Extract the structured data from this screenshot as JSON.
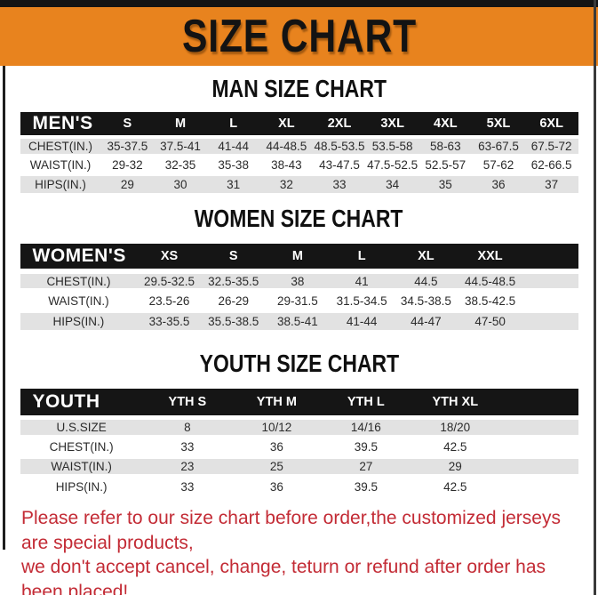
{
  "banner": {
    "title": "SIZE CHART"
  },
  "sections": [
    {
      "heading": "MAN SIZE CHART",
      "table": {
        "corner": "MEN'S",
        "columns": [
          "S",
          "M",
          "L",
          "XL",
          "2XL",
          "3XL",
          "4XL",
          "5XL",
          "6XL"
        ],
        "rows": [
          {
            "label": "CHEST(IN.)",
            "values": [
              "35-37.5",
              "37.5-41",
              "41-44",
              "44-48.5",
              "48.5-53.5",
              "53.5-58",
              "58-63",
              "63-67.5",
              "67.5-72"
            ]
          },
          {
            "label": "WAIST(IN.)",
            "values": [
              "29-32",
              "32-35",
              "35-38",
              "38-43",
              "43-47.5",
              "47.5-52.5",
              "52.5-57",
              "57-62",
              "62-66.5"
            ]
          },
          {
            "label": "HIPS(IN.)",
            "values": [
              "29",
              "30",
              "31",
              "32",
              "33",
              "34",
              "35",
              "36",
              "37"
            ]
          }
        ]
      }
    },
    {
      "heading": "WOMEN SIZE CHART",
      "table": {
        "corner": "WOMEN'S",
        "columns": [
          "XS",
          "S",
          "M",
          "L",
          "XL",
          "XXL"
        ],
        "rows": [
          {
            "label": "CHEST(IN.)",
            "values": [
              "29.5-32.5",
              "32.5-35.5",
              "38",
              "41",
              "44.5",
              "44.5-48.5"
            ]
          },
          {
            "label": "WAIST(IN.)",
            "values": [
              "23.5-26",
              "26-29",
              "29-31.5",
              "31.5-34.5",
              "34.5-38.5",
              "38.5-42.5"
            ]
          },
          {
            "label": "HIPS(IN.)",
            "values": [
              "33-35.5",
              "35.5-38.5",
              "38.5-41",
              "41-44",
              "44-47",
              "47-50"
            ]
          }
        ]
      }
    },
    {
      "heading": "YOUTH SIZE CHART",
      "table": {
        "corner": "YOUTH",
        "columns": [
          "YTH S",
          "YTH M",
          "YTH L",
          "YTH XL"
        ],
        "rows": [
          {
            "label": "U.S.SIZE",
            "values": [
              "8",
              "10/12",
              "14/16",
              "18/20"
            ]
          },
          {
            "label": "CHEST(IN.)",
            "values": [
              "33",
              "36",
              "39.5",
              "42.5"
            ]
          },
          {
            "label": "WAIST(IN.)",
            "values": [
              "23",
              "25",
              "27",
              "29"
            ]
          },
          {
            "label": "HIPS(IN.)",
            "values": [
              "33",
              "36",
              "39.5",
              "42.5"
            ]
          }
        ]
      }
    }
  ],
  "disclaimer": {
    "line1": "Please refer to our size chart before order,the customized jerseys are special products,",
    "line2": "we don't accept cancel, change, teturn or refund after order has been placed!"
  },
  "colors": {
    "banner_orange": "#E8831E",
    "header_black": "#151515",
    "row_gray": "#E2E2E2",
    "disclaimer_red": "#C32B35"
  }
}
